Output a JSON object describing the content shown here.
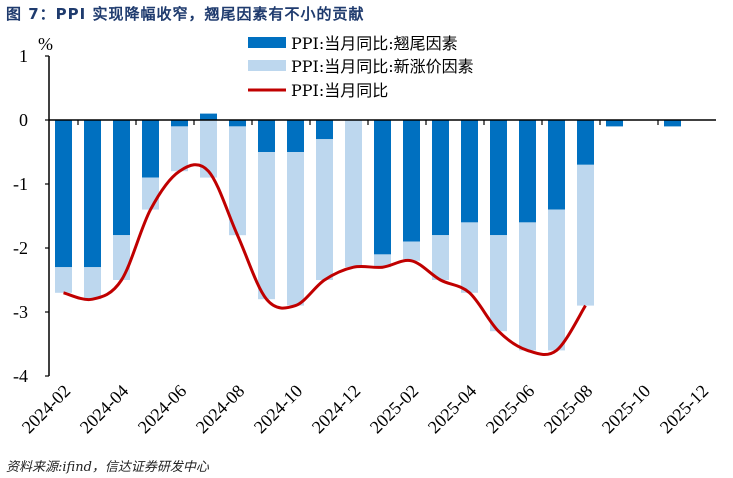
{
  "title": "图 7：PPI 实现降幅收窄，翘尾因素有不小的贡献",
  "source": "资料来源:ifind，信达证券研发中心",
  "chart_data": {
    "type": "bar",
    "unit_label": "%",
    "categories": [
      "2024-02",
      "2024-03",
      "2024-04",
      "2024-05",
      "2024-06",
      "2024-07",
      "2024-08",
      "2024-09",
      "2024-10",
      "2024-11",
      "2024-12",
      "2025-01",
      "2025-02",
      "2025-03",
      "2025-04",
      "2025-05",
      "2025-06",
      "2025-07",
      "2025-08",
      "2025-09",
      "2025-10",
      "2025-11",
      "2025-12"
    ],
    "x_tick_labels": [
      "2024-02",
      "2024-04",
      "2024-06",
      "2024-08",
      "2024-10",
      "2024-12",
      "2025-02",
      "2025-04",
      "2025-06",
      "2025-08",
      "2025-10",
      "2025-12"
    ],
    "ylim": [
      -4,
      1
    ],
    "y_ticks": [
      1,
      0,
      -1,
      -2,
      -3,
      -4
    ],
    "grid": false,
    "legend_placement": "top-right",
    "series": [
      {
        "name": "PPI:当月同比:翘尾因素",
        "type": "stacked-bar",
        "color": "#0070c0",
        "values": [
          -2.3,
          -2.3,
          -1.8,
          -0.9,
          -0.1,
          0.1,
          -0.1,
          -0.5,
          -0.5,
          -0.3,
          0,
          -2.1,
          -1.9,
          -1.8,
          -1.6,
          -1.8,
          -1.6,
          -1.4,
          -0.7,
          -0.1,
          null,
          -0.1,
          null
        ]
      },
      {
        "name": "PPI:当月同比:新涨价因素",
        "type": "stacked-bar",
        "color": "#bdd7ee",
        "values": [
          -0.4,
          -0.5,
          -0.7,
          -0.5,
          -0.7,
          -0.9,
          -1.7,
          -2.3,
          -2.4,
          -2.2,
          -2.3,
          -0.2,
          -0.3,
          -0.7,
          -1.1,
          -1.5,
          -2.0,
          -2.2,
          -2.2,
          null,
          null,
          null,
          null
        ]
      },
      {
        "name": "PPI:当月同比",
        "type": "line",
        "color": "#c00000",
        "values": [
          -2.7,
          -2.8,
          -2.5,
          -1.4,
          -0.8,
          -0.8,
          -1.8,
          -2.8,
          -2.9,
          -2.5,
          -2.3,
          -2.3,
          -2.2,
          -2.5,
          -2.7,
          -3.3,
          -3.6,
          -3.6,
          -2.9,
          null,
          null,
          null,
          null
        ]
      }
    ]
  }
}
